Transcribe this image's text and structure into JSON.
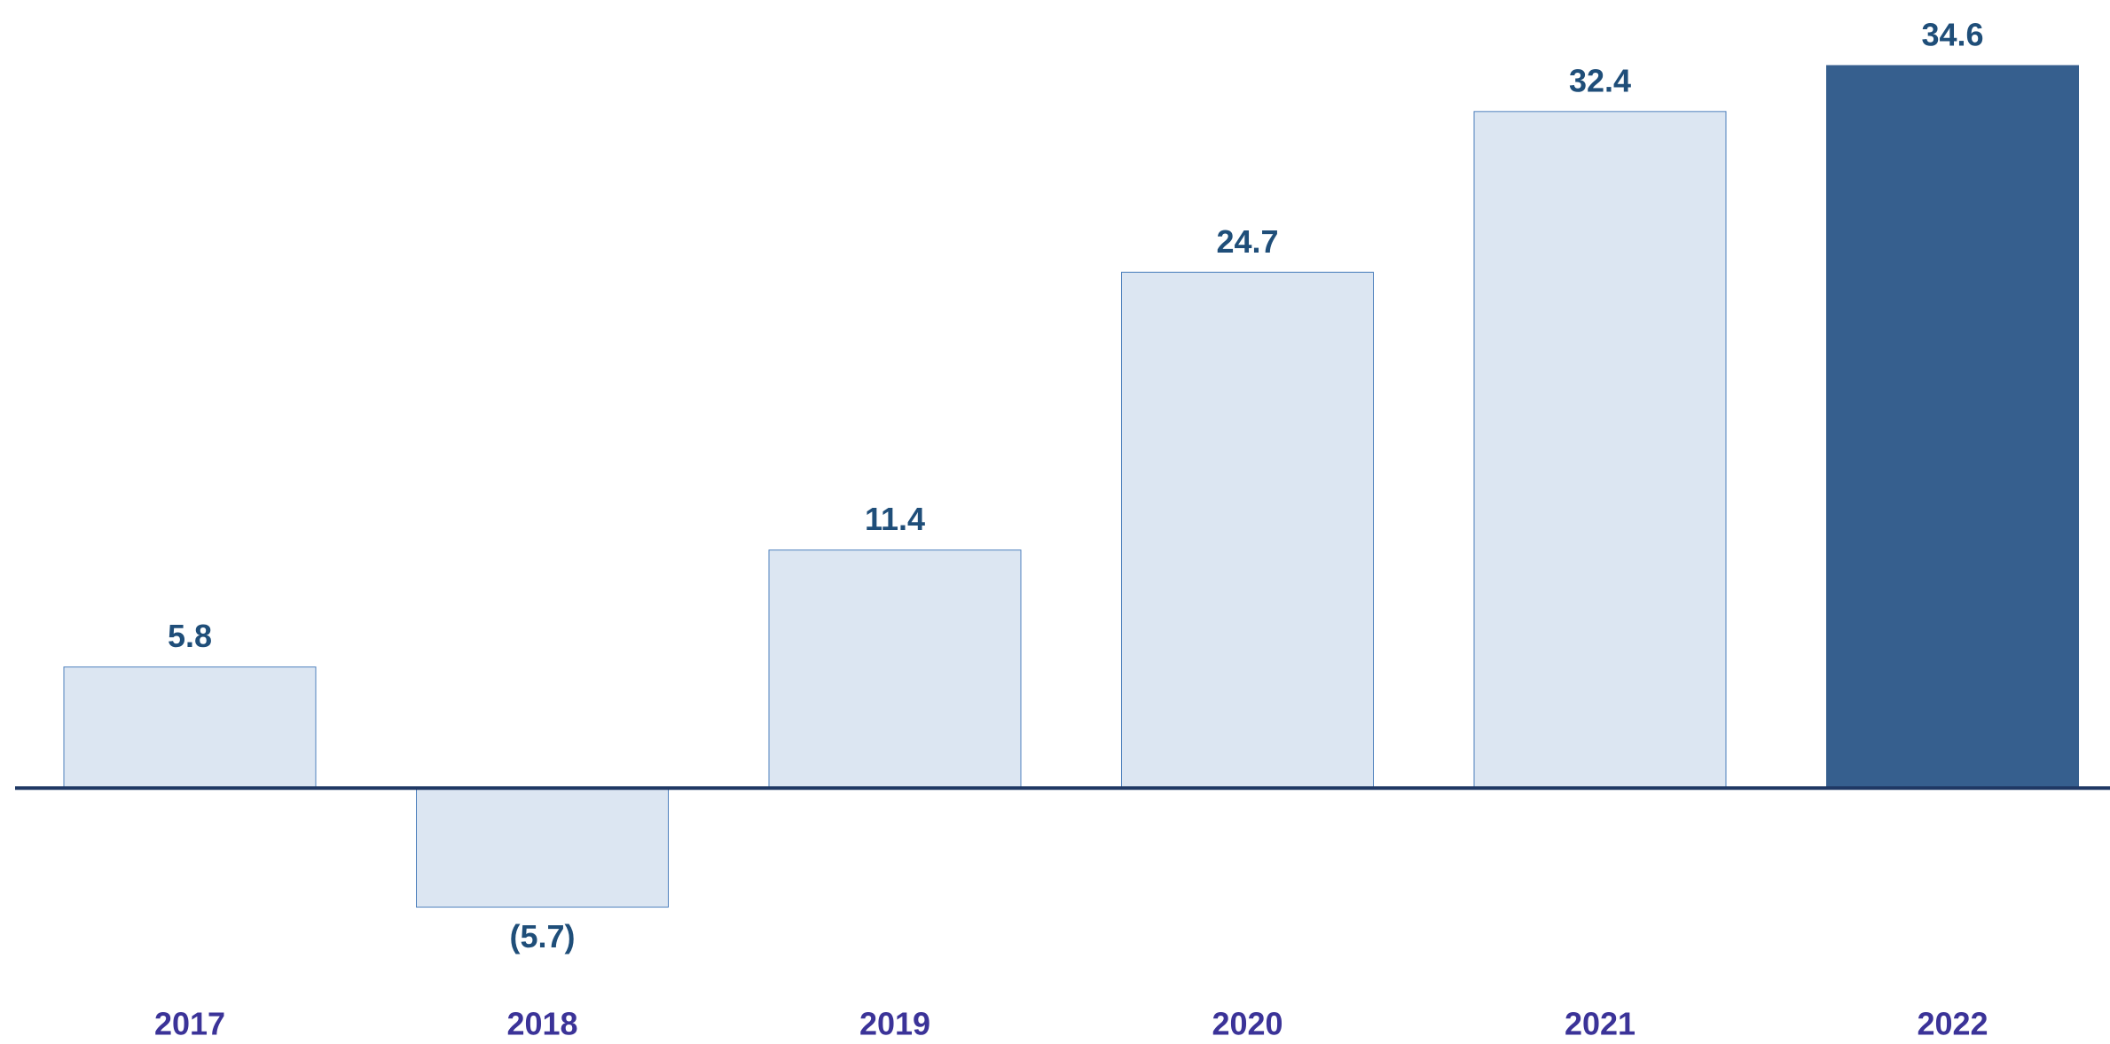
{
  "chart_data": {
    "type": "bar",
    "categories": [
      "2017",
      "2018",
      "2019",
      "2020",
      "2021",
      "2022"
    ],
    "values": [
      5.8,
      -5.7,
      11.4,
      24.7,
      32.4,
      34.6
    ],
    "value_labels": [
      "5.8",
      "(5.7)",
      "11.4",
      "24.7",
      "32.4",
      "34.6"
    ],
    "colors": [
      "#dce6f2",
      "#dce6f2",
      "#dce6f2",
      "#dce6f2",
      "#dce6f2",
      "#365f8e"
    ],
    "ylim": [
      -12,
      36
    ]
  }
}
